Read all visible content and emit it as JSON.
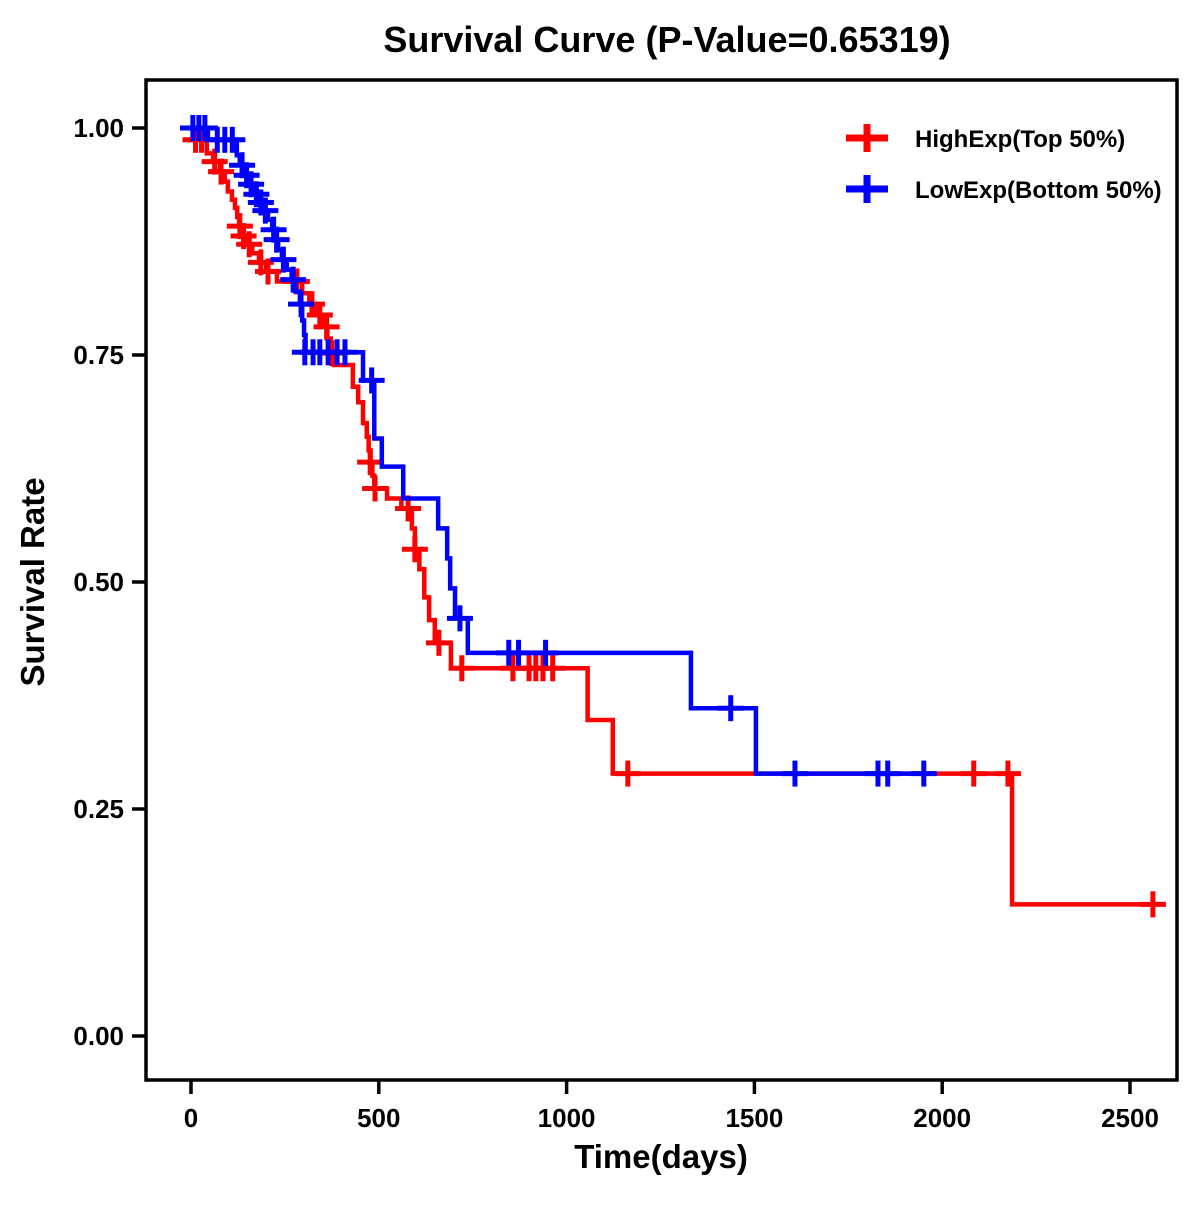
{
  "title": "Survival Curve (P-Value=0.65319)",
  "colors": {
    "high_exp": "#ff0000",
    "low_exp": "#0000ff",
    "axis": "#000000",
    "background": "#ffffff"
  },
  "legend": {
    "items": [
      {
        "label": "HighExp(Top 50%)",
        "color": "#ff0000",
        "marker": "plus"
      },
      {
        "label": "LowExp(Bottom 50%)",
        "color": "#0000ff",
        "marker": "plus"
      }
    ]
  },
  "chart_data": {
    "type": "line",
    "subtype": "kaplan-meier-survival-step",
    "title": "Survival Curve (P-Value=0.65319)",
    "p_value": 0.65319,
    "xlabel": "Time(days)",
    "ylabel": "Survival Rate",
    "xlim": [
      -120,
      2625
    ],
    "ylim": [
      -0.05,
      1.053
    ],
    "x_ticks": [
      0,
      500,
      1000,
      1500,
      2000,
      2500
    ],
    "y_tick_values": [
      0.0,
      0.25,
      0.5,
      0.75,
      1.0
    ],
    "y_tick_labels": [
      "0.00",
      "0.25",
      "0.50",
      "0.75",
      "1.00"
    ],
    "grid": false,
    "legend_position": "top-right-inside",
    "series": [
      {
        "name": "HighExp(Top 50%)",
        "color": "#ff0000",
        "end_time": 2566,
        "steps": [
          [
            0,
            1.0
          ],
          [
            10,
            0.987
          ],
          [
            42,
            0.972
          ],
          [
            59,
            0.963
          ],
          [
            77,
            0.952
          ],
          [
            90,
            0.941
          ],
          [
            98,
            0.93
          ],
          [
            109,
            0.921
          ],
          [
            117,
            0.912
          ],
          [
            123,
            0.902
          ],
          [
            128,
            0.892
          ],
          [
            133,
            0.881
          ],
          [
            150,
            0.872
          ],
          [
            163,
            0.862
          ],
          [
            181,
            0.852
          ],
          [
            200,
            0.842
          ],
          [
            229,
            0.831
          ],
          [
            296,
            0.818
          ],
          [
            315,
            0.806
          ],
          [
            331,
            0.794
          ],
          [
            349,
            0.781
          ],
          [
            363,
            0.768
          ],
          [
            372,
            0.752
          ],
          [
            381,
            0.739
          ],
          [
            431,
            0.715
          ],
          [
            445,
            0.698
          ],
          [
            458,
            0.675
          ],
          [
            468,
            0.66
          ],
          [
            473,
            0.645
          ],
          [
            478,
            0.632
          ],
          [
            483,
            0.617
          ],
          [
            488,
            0.603
          ],
          [
            522,
            0.592
          ],
          [
            560,
            0.581
          ],
          [
            588,
            0.559
          ],
          [
            596,
            0.536
          ],
          [
            608,
            0.514
          ],
          [
            621,
            0.483
          ],
          [
            634,
            0.458
          ],
          [
            649,
            0.433
          ],
          [
            692,
            0.405
          ],
          [
            1056,
            0.348
          ],
          [
            1123,
            0.289
          ],
          [
            2186,
            0.145
          ]
        ],
        "censors": [
          [
            12,
            0.987
          ],
          [
            28,
            0.987
          ],
          [
            63,
            0.963
          ],
          [
            80,
            0.952
          ],
          [
            130,
            0.892
          ],
          [
            140,
            0.881
          ],
          [
            155,
            0.872
          ],
          [
            186,
            0.852
          ],
          [
            205,
            0.842
          ],
          [
            282,
            0.831
          ],
          [
            322,
            0.806
          ],
          [
            343,
            0.794
          ],
          [
            361,
            0.781
          ],
          [
            375,
            0.752
          ],
          [
            477,
            0.632
          ],
          [
            490,
            0.603
          ],
          [
            578,
            0.581
          ],
          [
            596,
            0.536
          ],
          [
            660,
            0.433
          ],
          [
            721,
            0.405
          ],
          [
            857,
            0.405
          ],
          [
            900,
            0.405
          ],
          [
            918,
            0.405
          ],
          [
            937,
            0.405
          ],
          [
            963,
            0.405
          ],
          [
            1163,
            0.289
          ],
          [
            2084,
            0.289
          ],
          [
            2175,
            0.289
          ],
          [
            2561,
            0.145
          ]
        ]
      },
      {
        "name": "LowExp(Bottom 50%)",
        "color": "#0000ff",
        "end_time": 1986,
        "steps": [
          [
            0,
            1.0
          ],
          [
            45,
            0.987
          ],
          [
            122,
            0.97
          ],
          [
            130,
            0.959
          ],
          [
            144,
            0.948
          ],
          [
            152,
            0.938
          ],
          [
            170,
            0.927
          ],
          [
            178,
            0.918
          ],
          [
            192,
            0.909
          ],
          [
            205,
            0.899
          ],
          [
            216,
            0.888
          ],
          [
            224,
            0.877
          ],
          [
            232,
            0.866
          ],
          [
            242,
            0.855
          ],
          [
            255,
            0.844
          ],
          [
            268,
            0.833
          ],
          [
            278,
            0.82
          ],
          [
            290,
            0.806
          ],
          [
            296,
            0.788
          ],
          [
            301,
            0.772
          ],
          [
            305,
            0.753
          ],
          [
            458,
            0.722
          ],
          [
            488,
            0.658
          ],
          [
            508,
            0.627
          ],
          [
            565,
            0.592
          ],
          [
            658,
            0.559
          ],
          [
            682,
            0.526
          ],
          [
            690,
            0.493
          ],
          [
            703,
            0.46
          ],
          [
            737,
            0.422
          ],
          [
            1331,
            0.361
          ],
          [
            1504,
            0.289
          ]
        ],
        "censors": [
          [
            5,
            1.0
          ],
          [
            21,
            1.0
          ],
          [
            37,
            1.0
          ],
          [
            70,
            0.987
          ],
          [
            90,
            0.987
          ],
          [
            110,
            0.987
          ],
          [
            136,
            0.959
          ],
          [
            148,
            0.948
          ],
          [
            160,
            0.938
          ],
          [
            174,
            0.927
          ],
          [
            186,
            0.918
          ],
          [
            198,
            0.909
          ],
          [
            220,
            0.888
          ],
          [
            228,
            0.877
          ],
          [
            246,
            0.855
          ],
          [
            272,
            0.833
          ],
          [
            293,
            0.806
          ],
          [
            303,
            0.753
          ],
          [
            325,
            0.753
          ],
          [
            343,
            0.753
          ],
          [
            365,
            0.753
          ],
          [
            389,
            0.753
          ],
          [
            410,
            0.753
          ],
          [
            481,
            0.722
          ],
          [
            716,
            0.46
          ],
          [
            846,
            0.422
          ],
          [
            872,
            0.422
          ],
          [
            944,
            0.422
          ],
          [
            1437,
            0.361
          ],
          [
            1608,
            0.289
          ],
          [
            1829,
            0.289
          ],
          [
            1855,
            0.289
          ],
          [
            1951,
            0.289
          ]
        ]
      }
    ]
  }
}
